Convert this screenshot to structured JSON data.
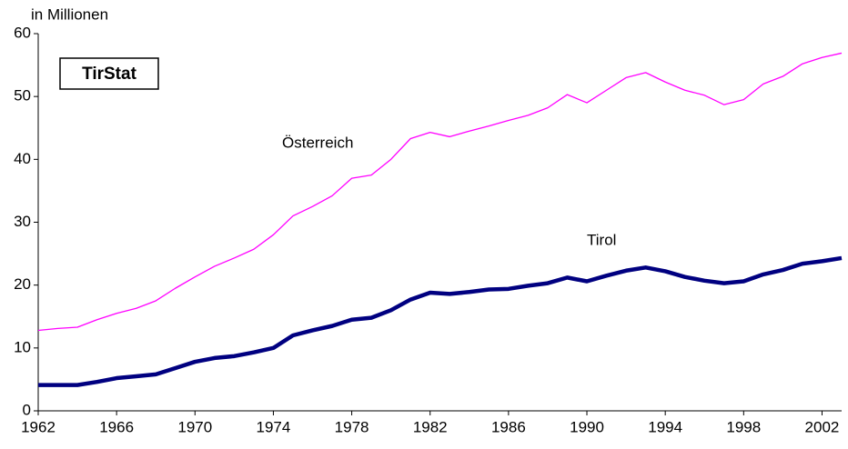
{
  "chart_data": {
    "type": "line",
    "y_label": "in Millionen",
    "badge": "TirStat",
    "x": [
      1962,
      1963,
      1964,
      1965,
      1966,
      1967,
      1968,
      1969,
      1970,
      1971,
      1972,
      1973,
      1974,
      1975,
      1976,
      1977,
      1978,
      1979,
      1980,
      1981,
      1982,
      1983,
      1984,
      1985,
      1986,
      1987,
      1988,
      1989,
      1990,
      1991,
      1992,
      1993,
      1994,
      1995,
      1996,
      1997,
      1998,
      1999,
      2000,
      2001,
      2002,
      2003
    ],
    "series": [
      {
        "name": "Österreich",
        "color": "#ff00ff",
        "width": 1.3,
        "values": [
          12.8,
          13.1,
          13.3,
          14.5,
          15.5,
          16.3,
          17.5,
          19.5,
          21.3,
          23,
          24.3,
          25.7,
          28,
          31,
          32.5,
          34.2,
          37,
          37.5,
          40,
          43.3,
          44.3,
          43.6,
          44.5,
          45.3,
          46.2,
          47,
          48.2,
          50.3,
          49,
          51,
          53,
          53.8,
          52.3,
          51,
          50.2,
          48.7,
          49.5,
          52,
          53.2,
          55.2,
          56.2,
          56.9
        ]
      },
      {
        "name": "Tirol",
        "color": "#000080",
        "width": 4.5,
        "values": [
          4.1,
          4.1,
          4.1,
          4.6,
          5.2,
          5.5,
          5.8,
          6.8,
          7.8,
          8.4,
          8.7,
          9.3,
          10,
          12,
          12.8,
          13.5,
          14.5,
          14.8,
          16,
          17.7,
          18.8,
          18.6,
          18.9,
          19.3,
          19.4,
          19.9,
          20.3,
          21.2,
          20.6,
          21.5,
          22.3,
          22.8,
          22.2,
          21.3,
          20.7,
          20.3,
          20.6,
          21.7,
          22.4,
          23.4,
          23.8,
          24.3
        ]
      }
    ],
    "xlim": [
      1962,
      2003
    ],
    "xticks": [
      1962,
      1966,
      1970,
      1974,
      1978,
      1982,
      1986,
      1990,
      1994,
      1998,
      2002
    ],
    "ylim": [
      0,
      60
    ],
    "yticks": [
      0,
      10,
      20,
      30,
      40,
      50,
      60
    ],
    "grid": false
  }
}
